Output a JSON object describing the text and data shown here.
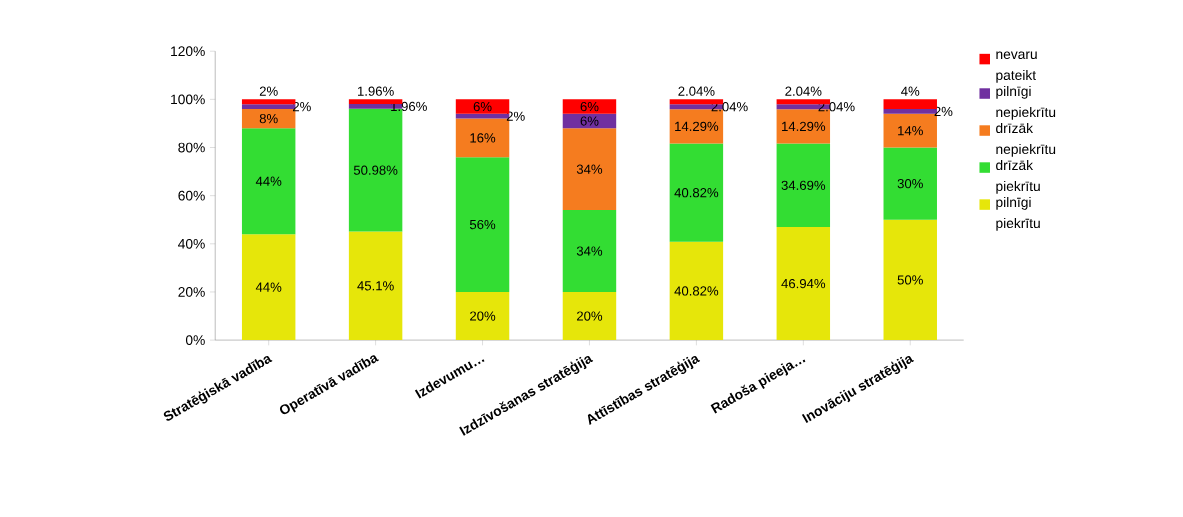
{
  "chart_data": {
    "type": "bar",
    "stacked": true,
    "legend": "right",
    "categories": [
      "Stratēģiskā vadība",
      "Operatīvā vadība",
      "Izdevumu…",
      "Izdzīvošanas stratēģija",
      "Attīstības stratēģija",
      "Radoša pieeja…",
      "Inovāciju stratēģija"
    ],
    "ylim": [
      0,
      120
    ],
    "yticks": [
      {
        "value": 0,
        "label": "0%"
      },
      {
        "value": 20,
        "label": "20%"
      },
      {
        "value": 40,
        "label": "40%"
      },
      {
        "value": 60,
        "label": "60%"
      },
      {
        "value": 80,
        "label": "80%"
      },
      {
        "value": 100,
        "label": "100%"
      },
      {
        "value": 120,
        "label": "120%"
      }
    ],
    "series": [
      {
        "name": "pilnīgi piekrītu",
        "color": "#e6e60a",
        "values": [
          44,
          45.1,
          20,
          20,
          40.82,
          46.94,
          50
        ],
        "value_labels": [
          "44%",
          "45.1%",
          "20%",
          "20%",
          "40.82%",
          "46.94%",
          "50%"
        ]
      },
      {
        "name": "drīzāk piekrītu",
        "color": "#33dd33",
        "values": [
          44,
          50.98,
          56,
          34,
          40.82,
          34.69,
          30
        ],
        "value_labels": [
          "44%",
          "50.98%",
          "56%",
          "34%",
          "40.82%",
          "34.69%",
          "30%"
        ]
      },
      {
        "name": "drīzāk nepiekrītu",
        "color": "#f57c1f",
        "values": [
          8,
          null,
          16,
          34,
          14.29,
          14.29,
          14
        ],
        "value_labels": [
          "8%",
          null,
          "16%",
          "34%",
          "14.29%",
          "14.29%",
          "14%"
        ]
      },
      {
        "name": "pilnīgi nepiekrītu",
        "color": "#7030a0",
        "values": [
          2,
          1.96,
          2,
          6,
          2.04,
          2.04,
          2
        ],
        "value_labels": [
          "2%",
          "1.96%",
          "2%",
          "6%",
          "2.04%",
          "2.04%",
          "2%"
        ]
      },
      {
        "name": "nevaru pateikt",
        "color": "#ff0000",
        "values": [
          2,
          1.96,
          6,
          6,
          2.04,
          2.04,
          4
        ],
        "value_labels": [
          "2%",
          "1.96%",
          "6%",
          "6%",
          "2.04%",
          "2.04%",
          "4%"
        ]
      }
    ]
  }
}
